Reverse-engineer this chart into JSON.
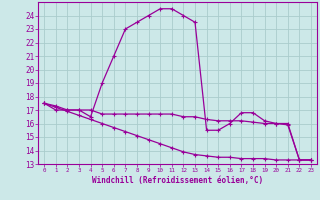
{
  "bg_color": "#cce8e8",
  "grid_color": "#aacccc",
  "line_color": "#990099",
  "xlabel": "Windchill (Refroidissement éolien,°C)",
  "xlim": [
    -0.5,
    23.5
  ],
  "ylim": [
    13,
    25
  ],
  "yticks": [
    13,
    14,
    15,
    16,
    17,
    18,
    19,
    20,
    21,
    22,
    23,
    24
  ],
  "xticks": [
    0,
    1,
    2,
    3,
    4,
    5,
    6,
    7,
    8,
    9,
    10,
    11,
    12,
    13,
    14,
    15,
    16,
    17,
    18,
    19,
    20,
    21,
    22,
    23
  ],
  "line1_x": [
    0,
    1,
    2,
    3,
    4,
    5,
    6,
    7,
    8,
    9,
    10,
    11,
    12,
    13,
    14,
    15,
    16,
    17,
    18,
    19,
    20,
    21,
    22,
    23
  ],
  "line1_y": [
    17.5,
    17.3,
    17.0,
    17.0,
    16.5,
    19.0,
    21.0,
    23.0,
    23.5,
    24.0,
    24.5,
    24.5,
    24.0,
    23.5,
    15.5,
    15.5,
    16.0,
    16.8,
    16.8,
    16.2,
    16.0,
    16.0,
    13.3,
    13.3
  ],
  "line2_x": [
    0,
    1,
    2,
    3,
    4,
    5,
    6,
    7,
    8,
    9,
    10,
    11,
    12,
    13,
    14,
    15,
    16,
    17,
    18,
    19,
    20,
    21,
    22,
    23
  ],
  "line2_y": [
    17.5,
    17.0,
    17.0,
    17.0,
    17.0,
    16.7,
    16.7,
    16.7,
    16.7,
    16.7,
    16.7,
    16.7,
    16.5,
    16.5,
    16.3,
    16.2,
    16.2,
    16.2,
    16.1,
    16.0,
    16.0,
    15.9,
    13.3,
    13.3
  ],
  "line3_x": [
    0,
    1,
    2,
    3,
    4,
    5,
    6,
    7,
    8,
    9,
    10,
    11,
    12,
    13,
    14,
    15,
    16,
    17,
    18,
    19,
    20,
    21,
    22,
    23
  ],
  "line3_y": [
    17.5,
    17.2,
    16.9,
    16.6,
    16.3,
    16.0,
    15.7,
    15.4,
    15.1,
    14.8,
    14.5,
    14.2,
    13.9,
    13.7,
    13.6,
    13.5,
    13.5,
    13.4,
    13.4,
    13.4,
    13.3,
    13.3,
    13.3,
    13.3
  ],
  "markersize": 3.0,
  "linewidth": 0.9
}
